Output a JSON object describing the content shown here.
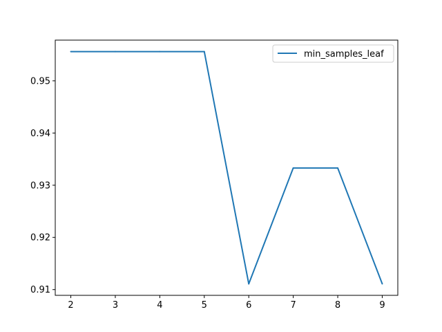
{
  "chart_data": {
    "type": "line",
    "title": "",
    "xlabel": "",
    "ylabel": "",
    "x": [
      2,
      3,
      4,
      5,
      6,
      7,
      8,
      9
    ],
    "series": [
      {
        "name": "min_samples_leaf",
        "color": "#1f77b4",
        "values": [
          0.9556,
          0.9556,
          0.9556,
          0.9556,
          0.9111,
          0.9333,
          0.9333,
          0.9111
        ]
      }
    ],
    "x_ticks": [
      "2",
      "3",
      "4",
      "5",
      "6",
      "7",
      "8",
      "9"
    ],
    "y_ticks": [
      "0.91",
      "0.92",
      "0.93",
      "0.94",
      "0.95"
    ],
    "xlim": [
      1.65,
      9.35
    ],
    "ylim": [
      0.9089,
      0.9578
    ],
    "grid": false,
    "legend_position": "top-right"
  }
}
